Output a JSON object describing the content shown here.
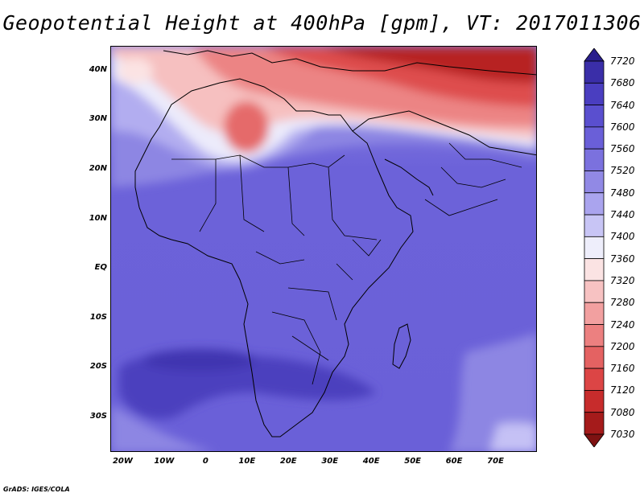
{
  "title": "Geopotential Height at 400hPa [gpm], VT: 2017011306",
  "credit": "GrADS: IGES/COLA",
  "map": {
    "lat_labels": [
      "40N",
      "30N",
      "20N",
      "10N",
      "EQ",
      "10S",
      "20S",
      "30S"
    ],
    "lon_labels": [
      "20W",
      "10W",
      "0",
      "10E",
      "20E",
      "30E",
      "40E",
      "50E",
      "60E",
      "70E"
    ],
    "extent": {
      "lon_min": -23,
      "lon_max": 80,
      "lat_min": -37,
      "lat_max": 45
    }
  },
  "colorbar": {
    "labels": [
      "7720",
      "7680",
      "7640",
      "7600",
      "7560",
      "7520",
      "7480",
      "7440",
      "7400",
      "7360",
      "7320",
      "7280",
      "7240",
      "7200",
      "7160",
      "7120",
      "7080",
      "7030"
    ],
    "colors": [
      "#2a1f8c",
      "#3a2ea8",
      "#4a3ec0",
      "#5a4fcf",
      "#6a5fd8",
      "#7b71de",
      "#9189e5",
      "#aaa4ee",
      "#c8c5f5",
      "#eeeefb",
      "#fbe3e3",
      "#f7c2c2",
      "#f2a0a0",
      "#ec8080",
      "#e46262",
      "#dc4545",
      "#c72c2c",
      "#a51b1b",
      "#7e1212"
    ]
  }
}
